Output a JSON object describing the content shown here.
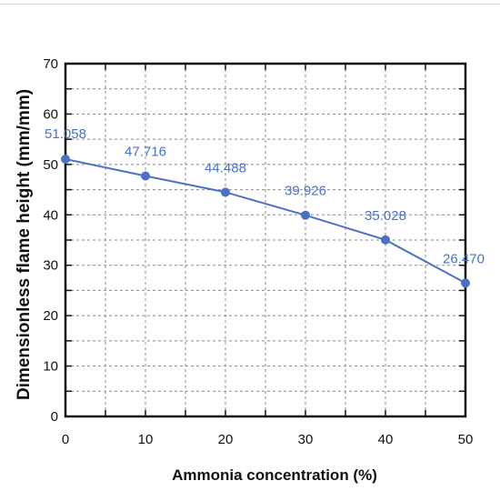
{
  "chart_data": {
    "type": "line",
    "title": "",
    "xlabel": "Ammonia concentration (%)",
    "ylabel": "Dimensionless flame height (mm/mm)",
    "xlim": [
      0,
      50
    ],
    "ylim": [
      0,
      70
    ],
    "x_ticks": [
      "0",
      "10",
      "20",
      "30",
      "40",
      "50"
    ],
    "y_ticks": [
      "0",
      "10",
      "20",
      "30",
      "40",
      "50",
      "60",
      "70"
    ],
    "grid": true,
    "legend": "none",
    "series": [
      {
        "color": "#4a72c4",
        "points": [
          {
            "x": 0,
            "y": 51.058,
            "label": "51.058"
          },
          {
            "x": 10,
            "y": 47.716,
            "label": "47.716"
          },
          {
            "x": 20,
            "y": 44.488,
            "label": "44.488"
          },
          {
            "x": 30,
            "y": 39.926,
            "label": "39.926"
          },
          {
            "x": 40,
            "y": 35.028,
            "label": "35.028"
          },
          {
            "x": 50,
            "y": 26.47,
            "label": "26.470"
          }
        ]
      }
    ]
  }
}
